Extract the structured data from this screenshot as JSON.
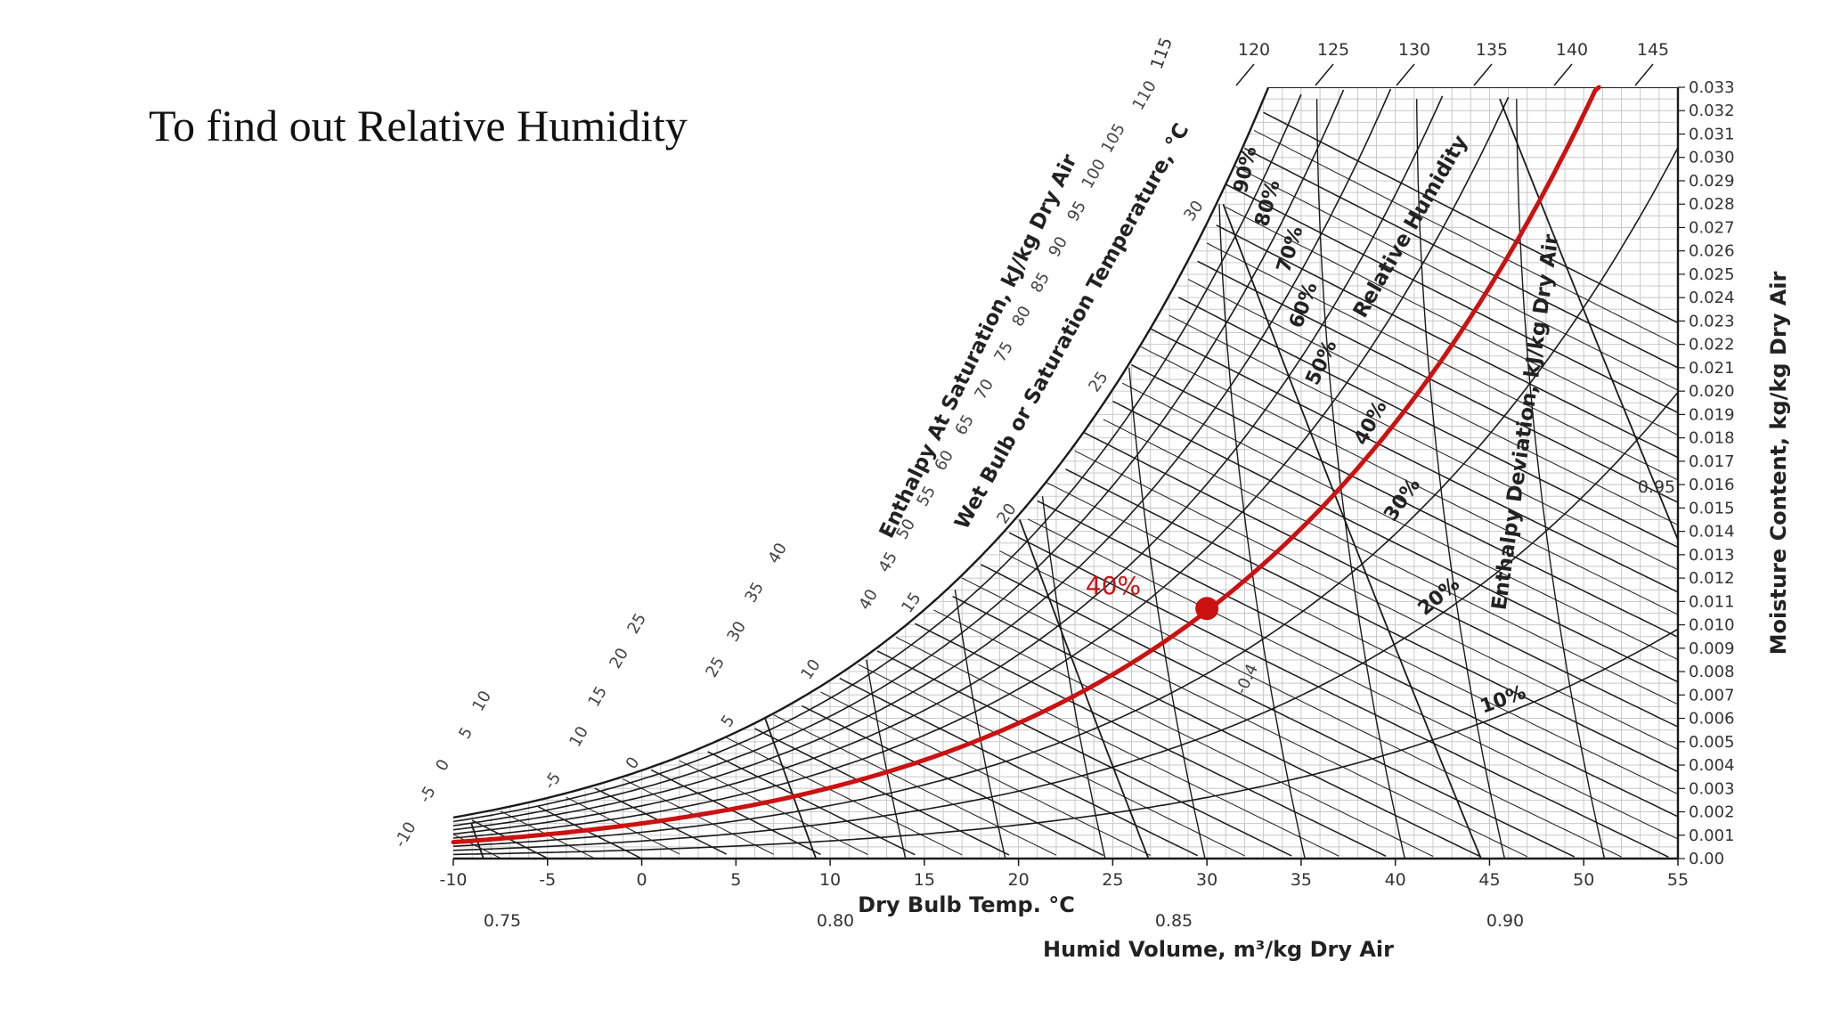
{
  "slide": {
    "title": "To find out Relative Humidity"
  },
  "chart_data": {
    "type": "psychrometric",
    "x_axis": {
      "label": "Dry Bulb Temp. °C",
      "ticks": [
        "-10",
        "-5",
        "0",
        "5",
        "10",
        "15",
        "20",
        "25",
        "30",
        "35",
        "40",
        "45",
        "50",
        "55"
      ],
      "range": [
        -10,
        55
      ]
    },
    "y_axis": {
      "label": "Moisture Content, kg/kg Dry Air",
      "ticks": [
        "0.00",
        "0.001",
        "0.002",
        "0.003",
        "0.004",
        "0.005",
        "0.006",
        "0.007",
        "0.008",
        "0.009",
        "0.010",
        "0.011",
        "0.012",
        "0.013",
        "0.014",
        "0.015",
        "0.016",
        "0.017",
        "0.018",
        "0.019",
        "0.020",
        "0.021",
        "0.022",
        "0.023",
        "0.024",
        "0.025",
        "0.026",
        "0.027",
        "0.028",
        "0.029",
        "0.030",
        "0.031",
        "0.032",
        "0.033"
      ],
      "range": [
        0,
        0.033
      ],
      "side": "right"
    },
    "top_scale": {
      "ticks": [
        "120",
        "125",
        "130",
        "135",
        "140",
        "145"
      ],
      "values": [
        120,
        125,
        130,
        135,
        140,
        145
      ],
      "start_label": "115"
    },
    "enthalpy_saturation": {
      "label": "Enthalpy At Saturation, kJ/kg Dry Air",
      "ticks": [
        "-10",
        "-5",
        "0",
        "5",
        "10",
        "10",
        "15",
        "20",
        "25",
        "25",
        "30",
        "35",
        "40",
        "40",
        "45",
        "50",
        "55",
        "60",
        "65",
        "70",
        "75",
        "80",
        "85",
        "90",
        "95",
        "100",
        "105",
        "110"
      ]
    },
    "wet_bulb": {
      "label": "Wet Bulb or Saturation Temperature, °C",
      "ticks": [
        "-5",
        "0",
        "5",
        "10",
        "15",
        "20",
        "25",
        "30"
      ]
    },
    "humid_volume": {
      "label": "Humid Volume, m³/kg Dry Air",
      "ticks": [
        "0.75",
        "0.80",
        "0.85",
        "0.90",
        "0.95"
      ],
      "values": [
        0.75,
        0.8,
        0.85,
        0.9,
        0.95
      ]
    },
    "enthalpy_deviation": {
      "label": "Enthalpy Deviation, kJ/kg Dry Air",
      "ticks": [
        "-0.4"
      ]
    },
    "relative_humidity": {
      "label": "Relative Humidity",
      "curves": [
        "10%",
        "20%",
        "30%",
        "40%",
        "50%",
        "60%",
        "70%",
        "80%",
        "90%"
      ],
      "values": [
        10,
        20,
        30,
        40,
        50,
        60,
        70,
        80,
        90
      ]
    },
    "highlight": {
      "series": "40%",
      "value": 40,
      "label": "40%",
      "color": "#cc1111",
      "point": {
        "x": 30,
        "y": 0.0107
      }
    },
    "line_color": "#1a1a1a",
    "grid": true
  }
}
